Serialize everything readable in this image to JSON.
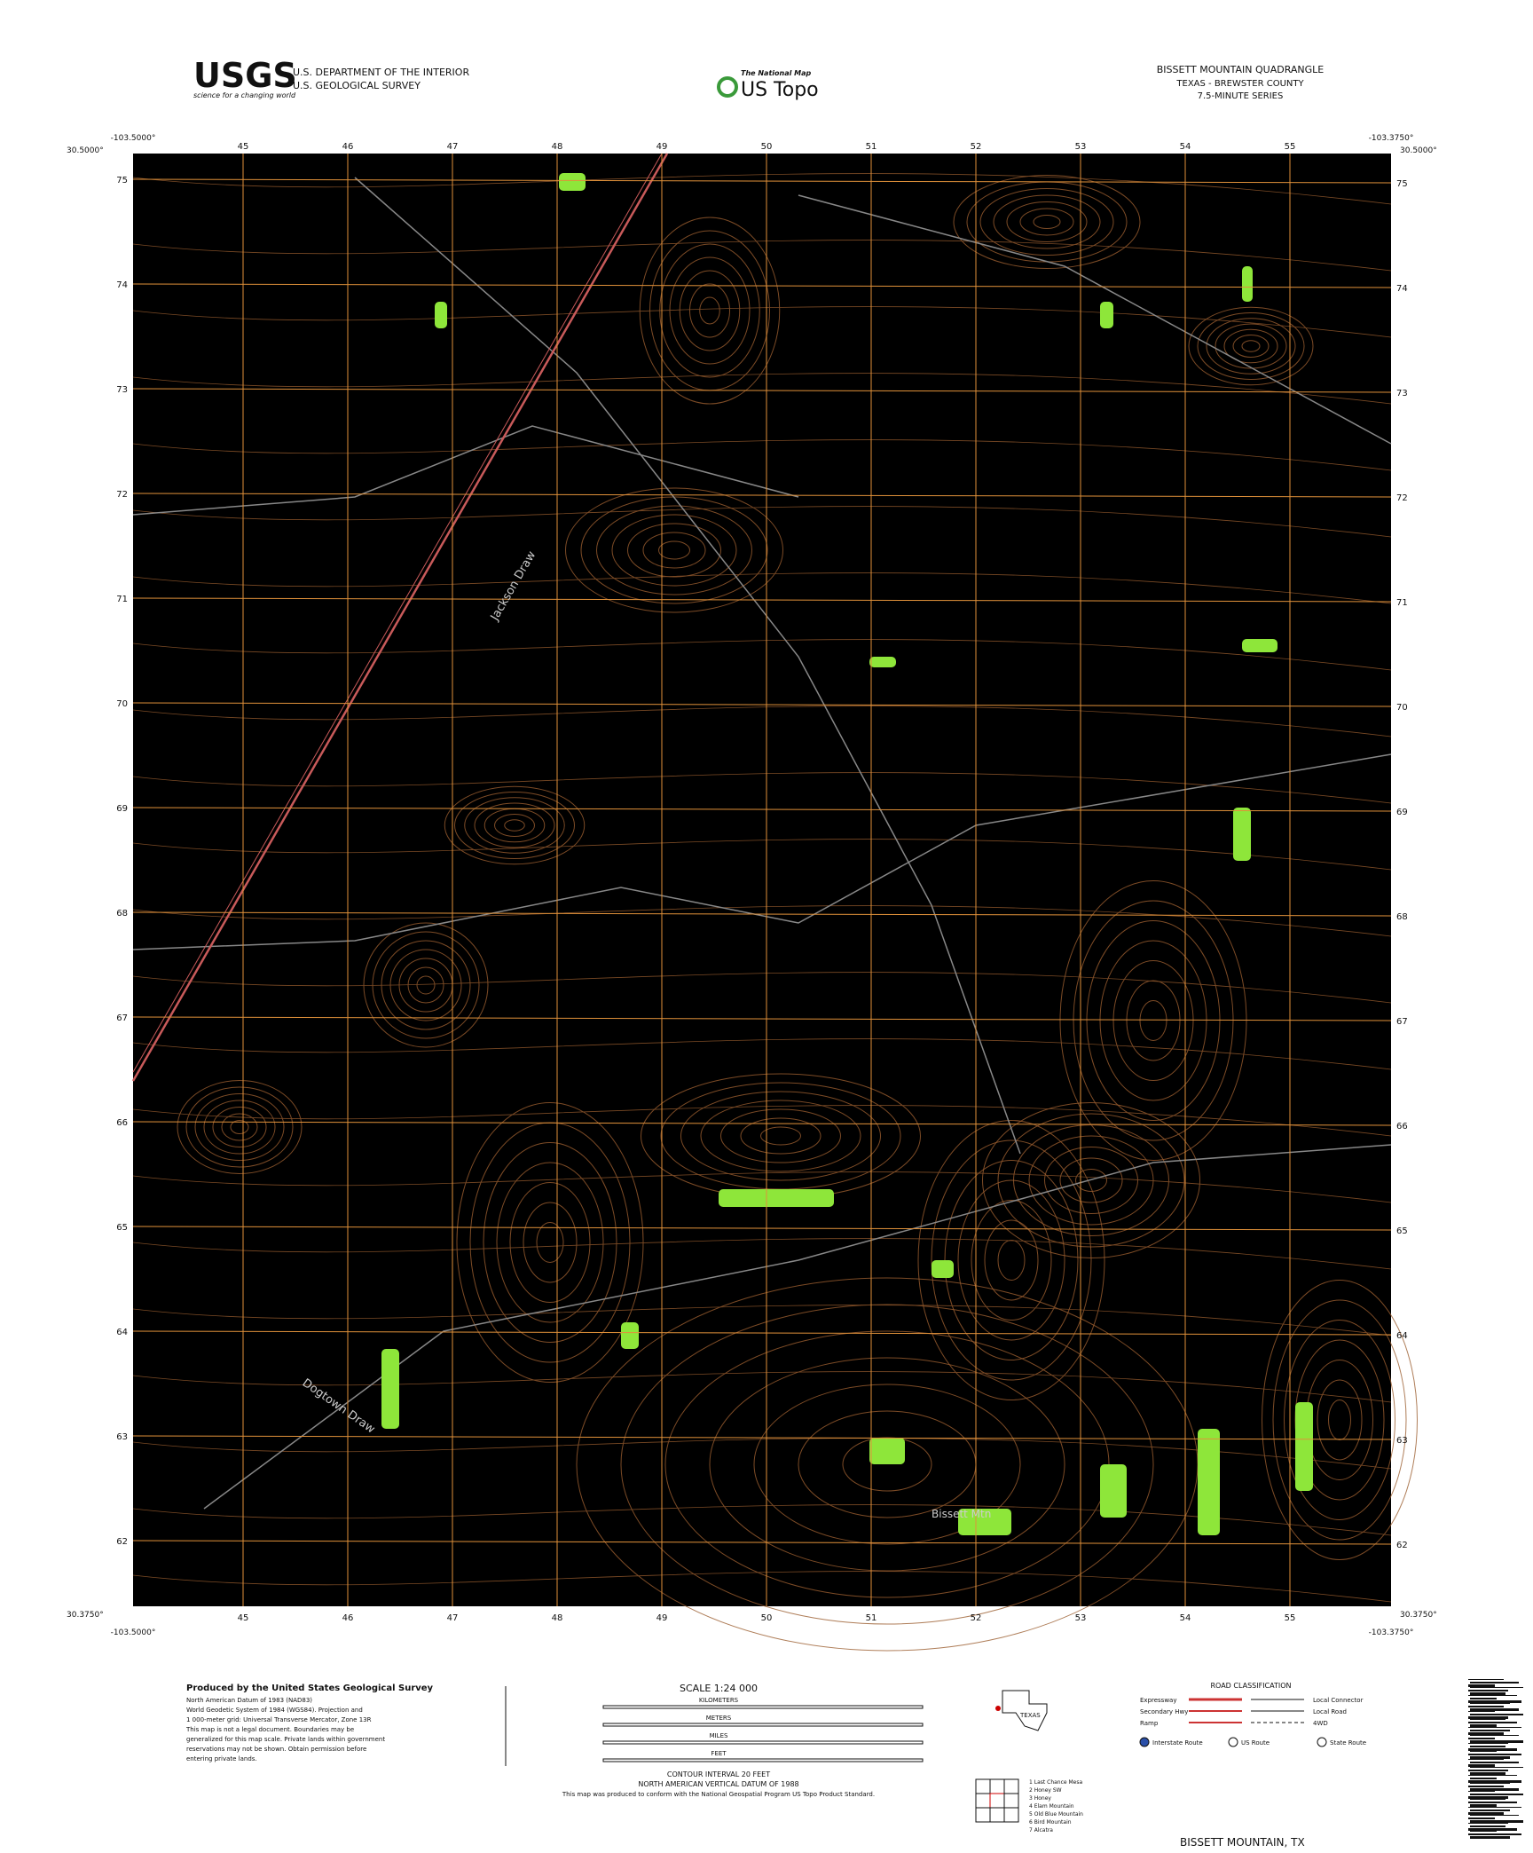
{
  "header": {
    "agency_logo": "USGS",
    "agency_tagline": "science for a changing world",
    "department": "U.S. DEPARTMENT OF THE INTERIOR",
    "survey": "U.S. GEOLOGICAL SURVEY",
    "program_small": "The National Map",
    "program": "US Topo",
    "quad_title": "BISSETT MOUNTAIN QUADRANGLE",
    "state_county": "TEXAS - BREWSTER COUNTY",
    "series": "7.5-MINUTE SERIES"
  },
  "corners": {
    "north_lat": "30.5000°",
    "south_lat": "30.3750°",
    "west_lon": "-103.5000°",
    "east_lon": "-103.3750°"
  },
  "grid": {
    "eastings": [
      45,
      46,
      47,
      48,
      49,
      50,
      51,
      52,
      53,
      54,
      55
    ],
    "northings": [
      75,
      74,
      73,
      72,
      71,
      70,
      69,
      68,
      67,
      66,
      65,
      64,
      63,
      62
    ]
  },
  "map_labels": [
    "Jackson Draw",
    "Bissett Mtn",
    "Dogtown Draw"
  ],
  "footer": {
    "producer": "Produced by the United States Geological Survey",
    "credits": [
      "North American Datum of 1983 (NAD83)",
      "World Geodetic System of 1984 (WGS84). Projection and",
      "1 000-meter grid: Universal Transverse Mercator, Zone 13R",
      "This map is not a legal document. Boundaries may be",
      "generalized for this map scale. Private lands within government",
      "reservations may not be shown. Obtain permission before",
      "entering private lands."
    ],
    "scale": "SCALE 1:24 000",
    "scale_units": [
      "KILOMETERS",
      "METERS",
      "MILES",
      "FEET"
    ],
    "contour": "CONTOUR INTERVAL 20 FEET",
    "datum": "NORTH AMERICAN VERTICAL DATUM OF 1988",
    "standard": "This map was produced to conform with the National Geospatial Program US Topo Product Standard.",
    "road_title": "ROAD CLASSIFICATION",
    "roads_left": [
      "Expressway",
      "Secondary Hwy",
      "Ramp"
    ],
    "roads_right": [
      "Local Connector",
      "Local Road",
      "4WD"
    ],
    "routes": [
      "Interstate Route",
      "US Route",
      "State Route"
    ],
    "state": "TEXAS",
    "adjoining": [
      "1 Last Chance Mesa",
      "2 Honey SW",
      "3 Honey",
      "4 Elam Mountain",
      "5 Old Blue Mountain",
      "6 Bird Mountain",
      "7 Alcatra"
    ],
    "quad_name": "BISSETT MOUNTAIN, TX"
  }
}
